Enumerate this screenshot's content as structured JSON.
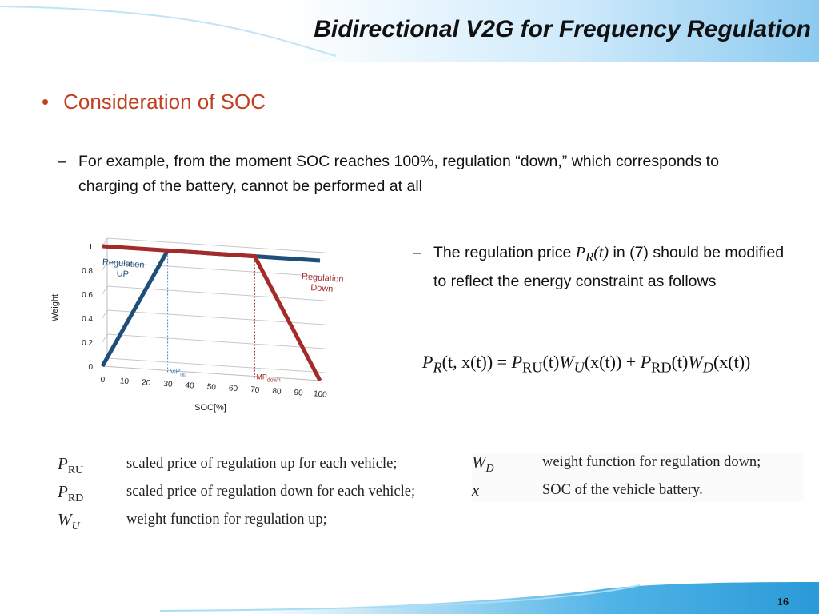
{
  "slide": {
    "title": "Bidirectional V2G for Frequency Regulation",
    "bullet": "Consideration of SOC",
    "sub1_dash": "–",
    "sub1": "For example, from the moment SOC reaches 100%, regulation “down,” which corresponds to charging of the battery, cannot be performed at all",
    "sub2_dash": "–",
    "sub2_pre": "The regulation price",
    "sub2_sym": "P",
    "sub2_symsub": "R",
    "sub2_symarg": "(t)",
    "sub2_post": "in (7) should be modified to reflect the energy constraint as follows",
    "page_number": "16"
  },
  "formula": {
    "lhs": "P",
    "lhs_sub": "R",
    "lhs_args": "(t, x(t)) = ",
    "t1": "P",
    "t1_sub": "RU",
    "t1_args": "(t)",
    "t2": "W",
    "t2_sub": "U",
    "t2_args": "(x(t)) + ",
    "t3": "P",
    "t3_sub": "RD",
    "t3_args": "(t)",
    "t4": "W",
    "t4_sub": "D",
    "t4_args": "(x(t))"
  },
  "definitions": {
    "left": [
      {
        "sym": "P",
        "sub": "RU",
        "text": "scaled price of regulation up for each vehicle;"
      },
      {
        "sym": "P",
        "sub": "RD",
        "text": "scaled price of regulation down for each vehicle;"
      },
      {
        "sym": "W",
        "sub": "U",
        "text": "weight function for regulation up;"
      }
    ],
    "right": [
      {
        "sym": "W",
        "sub": "D",
        "text": "weight function for regulation down;"
      },
      {
        "sym": "x",
        "sub": "",
        "text": "SOC of the vehicle battery."
      }
    ]
  },
  "colors": {
    "bullet": "#c0401f",
    "regulation_up": "#1f4e79",
    "regulation_down": "#a52a2a",
    "header_band": "#9fd3f3",
    "footer_band": "#3aa8e0"
  },
  "chart_data": {
    "type": "line",
    "ylabel": "Weight",
    "xlabel": "SOC[%]",
    "x_ticks": [
      "0",
      "10",
      "20",
      "30",
      "40",
      "50",
      "60",
      "70",
      "80",
      "90",
      "100"
    ],
    "y_ticks": [
      "0",
      "0.2",
      "0.4",
      "0.6",
      "0.8",
      "1"
    ],
    "ylim": [
      0,
      1
    ],
    "xlim": [
      0,
      100
    ],
    "grid": true,
    "series": [
      {
        "name": "Regulation UP",
        "label_lines": [
          "Regulation",
          "UP"
        ],
        "color": "#1f4e79",
        "x": [
          0,
          30,
          100
        ],
        "y": [
          0,
          1,
          1
        ]
      },
      {
        "name": "Regulation Down",
        "label_lines": [
          "Regulation",
          "Down"
        ],
        "color": "#a52a2a",
        "x": [
          0,
          70,
          100
        ],
        "y": [
          1,
          1,
          0
        ]
      }
    ],
    "markers": [
      {
        "label": "MP",
        "sub": "up",
        "x": 30,
        "color": "#4a7fc1"
      },
      {
        "label": "MP",
        "sub": "down",
        "x": 70,
        "color": "#a52a2a"
      }
    ]
  }
}
